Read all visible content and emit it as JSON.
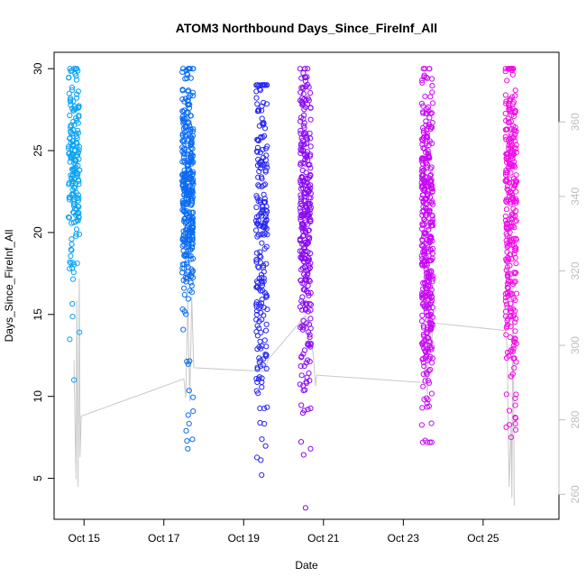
{
  "chart_data": {
    "type": "scatter",
    "title": "ATOM3 Northbound Days_Since_FireInf_All",
    "xlabel": "Date",
    "ylabel": "Days_Since_FireInf_All",
    "x_ticks": [
      "Oct 15",
      "Oct 17",
      "Oct 19",
      "Oct 21",
      "Oct 23",
      "Oct 25"
    ],
    "x_tick_days": [
      15,
      17,
      19,
      21,
      23,
      25
    ],
    "xlim": [
      14.25,
      26.9
    ],
    "ylim": [
      2.5,
      31
    ],
    "y_ticks": [
      5,
      10,
      15,
      20,
      25,
      30
    ],
    "y2lim": [
      253.3,
      378.7
    ],
    "y2_ticks": [
      260,
      280,
      300,
      320,
      340,
      360
    ],
    "grid": false,
    "legend": "none",
    "series": [
      {
        "date": "Oct 14",
        "day": 14.75,
        "color": "#0aa2f4",
        "y_min": 11,
        "y_max": 30,
        "n": 180,
        "center": 24.5,
        "spread": 3
      },
      {
        "date": "Oct 17",
        "day": 17.6,
        "color": "#0a6bf3",
        "y_min": 6.8,
        "y_max": 30,
        "n": 340,
        "center": 22.5,
        "spread": 3.5
      },
      {
        "date": "Oct 19",
        "day": 19.45,
        "color": "#2828f0",
        "y_min": 5.2,
        "y_max": 29,
        "n": 220,
        "center": 21,
        "spread": 5
      },
      {
        "date": "Oct 20",
        "day": 20.55,
        "color": "#8a0af2",
        "y_min": 3.2,
        "y_max": 30,
        "n": 300,
        "center": 21,
        "spread": 5
      },
      {
        "date": "Oct 23",
        "day": 23.6,
        "color": "#c80af5",
        "y_min": 7.2,
        "y_max": 30,
        "n": 380,
        "center": 19.5,
        "spread": 5
      },
      {
        "date": "Oct 25",
        "day": 25.7,
        "color": "#f00ee6",
        "y_min": 7.5,
        "y_max": 30,
        "n": 300,
        "center": 21.5,
        "spread": 5
      }
    ],
    "line_series": {
      "color": "#c8c8c8",
      "axis": "right",
      "points": [
        [
          14.75,
          296
        ],
        [
          14.8,
          264
        ],
        [
          14.82,
          312
        ],
        [
          14.85,
          262
        ],
        [
          14.88,
          318
        ],
        [
          14.9,
          270
        ],
        [
          14.93,
          281
        ],
        [
          17.5,
          291
        ],
        [
          17.55,
          286
        ],
        [
          17.6,
          312
        ],
        [
          17.65,
          285
        ],
        [
          17.7,
          313
        ],
        [
          17.75,
          294
        ],
        [
          19.55,
          293
        ],
        [
          19.6,
          296
        ],
        [
          20.55,
          308
        ],
        [
          20.6,
          305
        ],
        [
          20.65,
          299
        ],
        [
          20.7,
          300
        ],
        [
          20.75,
          297
        ],
        [
          20.8,
          289
        ],
        [
          20.83,
          292
        ],
        [
          23.5,
          290
        ],
        [
          23.55,
          296
        ],
        [
          23.6,
          287
        ],
        [
          23.65,
          311
        ],
        [
          23.7,
          300
        ],
        [
          23.75,
          306
        ],
        [
          25.55,
          304
        ],
        [
          25.6,
          300
        ],
        [
          25.65,
          262
        ],
        [
          25.7,
          278
        ],
        [
          25.72,
          259
        ],
        [
          25.75,
          320
        ],
        [
          25.78,
          257
        ]
      ]
    }
  }
}
